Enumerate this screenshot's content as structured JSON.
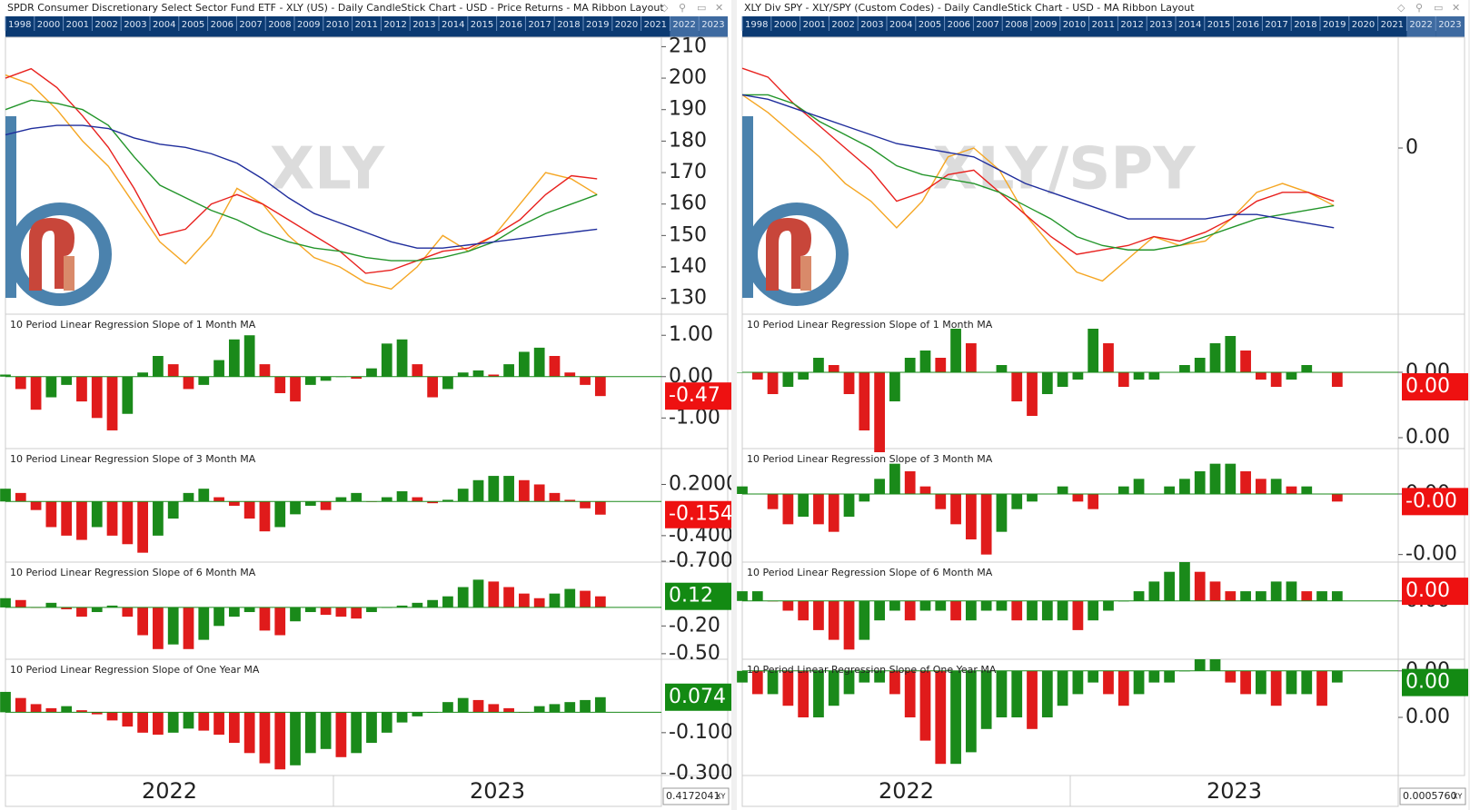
{
  "windows": [
    {
      "title": "SPDR Consumer Discretionary Select Sector Fund ETF - XLY (US) - Daily CandleStick Chart - USD - Price Returns - MA Ribbon Layout",
      "years": [
        "1998",
        "2000",
        "2001",
        "2002",
        "2003",
        "2004",
        "2005",
        "2006",
        "2007",
        "2008",
        "2009",
        "2010",
        "2011",
        "2012",
        "2013",
        "2014",
        "2015",
        "2016",
        "2017",
        "2018",
        "2019",
        "2020",
        "2021",
        "2022",
        "2023"
      ],
      "main": {
        "watermark": "XLY",
        "ylim": [
          125,
          213
        ],
        "yticks": [
          130,
          140,
          150,
          160,
          170,
          180,
          190,
          200,
          210
        ],
        "xlim": [
          0,
          25.5
        ],
        "series": [
          {
            "color": "#f5a623",
            "values": [
              201,
              198,
              190,
              180,
              172,
              160,
              148,
              141,
              150,
              165,
              160,
              150,
              143,
              140,
              135,
              133,
              140,
              150,
              145,
              150,
              160,
              170,
              168,
              163
            ]
          },
          {
            "color": "#e8211e",
            "values": [
              200,
              203,
              197,
              188,
              178,
              165,
              150,
              152,
              160,
              163,
              160,
              155,
              150,
              145,
              138,
              139,
              142,
              145,
              146,
              150,
              155,
              163,
              169,
              168
            ]
          },
          {
            "color": "#23952a",
            "values": [
              190,
              193,
              192,
              190,
              185,
              175,
              166,
              162,
              158,
              155,
              151,
              148,
              146,
              145,
              143,
              142,
              142,
              143,
              145,
              148,
              153,
              157,
              160,
              163
            ]
          },
          {
            "color": "#1f2d9c",
            "values": [
              182,
              184,
              185,
              185,
              184,
              181,
              179,
              178,
              176,
              173,
              168,
              162,
              157,
              154,
              151,
              148,
              146,
              146,
              147,
              148,
              149,
              150,
              151,
              152
            ]
          }
        ]
      },
      "panes": [
        {
          "title": "10 Period Linear Regression Slope of 1 Month MA",
          "ylim": [
            -1.74,
            1.51
          ],
          "xlim": [
            0,
            43
          ],
          "yticks": [
            {
              "value": 1,
              "label": "1.00"
            },
            {
              "value": 0,
              "label": "0.00"
            },
            {
              "value": -1,
              "label": "-1.00"
            }
          ],
          "values": [
            0.05,
            -0.3,
            -0.8,
            -0.5,
            -0.2,
            -0.6,
            -1.0,
            -1.3,
            -0.9,
            0.1,
            0.5,
            0.3,
            -0.3,
            -0.2,
            0.4,
            0.9,
            1.0,
            0.3,
            -0.4,
            -0.6,
            -0.2,
            -0.1,
            0.0,
            -0.05,
            0.2,
            0.8,
            0.9,
            0.3,
            -0.5,
            -0.3,
            0.1,
            0.15,
            0.05,
            0.3,
            0.6,
            0.7,
            0.5,
            0.1,
            -0.2,
            -0.47
          ],
          "box": {
            "value": -0.47,
            "label": "-0.47",
            "color": "#ee1111"
          }
        },
        {
          "title": "10 Period Linear Regression Slope of 3 Month MA",
          "ylim": [
            -0.71,
            0.62
          ],
          "xlim": [
            0,
            43
          ],
          "yticks": [
            {
              "value": 0.2,
              "label": "0.2000"
            },
            {
              "value": -0.4,
              "label": "-0.4000"
            },
            {
              "value": -0.7,
              "label": "-0.7000"
            }
          ],
          "values": [
            0.15,
            0.1,
            -0.1,
            -0.3,
            -0.4,
            -0.45,
            -0.3,
            -0.4,
            -0.5,
            -0.6,
            -0.4,
            -0.2,
            0.1,
            0.15,
            0.05,
            -0.05,
            -0.2,
            -0.35,
            -0.3,
            -0.15,
            -0.05,
            -0.1,
            0.05,
            0.1,
            0.0,
            0.05,
            0.12,
            0.05,
            -0.02,
            0.02,
            0.15,
            0.25,
            0.3,
            0.3,
            0.25,
            0.2,
            0.1,
            0.02,
            -0.08,
            -0.154
          ],
          "box": {
            "value": -0.154,
            "label": "-0.1540",
            "color": "#ee1111"
          }
        },
        {
          "title": "10 Period Linear Regression Slope of 6 Month MA",
          "ylim": [
            -0.56,
            0.49
          ],
          "xlim": [
            0,
            43
          ],
          "yticks": [
            {
              "value": -0.2,
              "label": "-0.20"
            },
            {
              "value": -0.5,
              "label": "-0.50"
            }
          ],
          "values": [
            0.1,
            0.08,
            0.0,
            0.05,
            -0.02,
            -0.1,
            -0.05,
            0.02,
            -0.1,
            -0.3,
            -0.45,
            -0.4,
            -0.45,
            -0.35,
            -0.2,
            -0.1,
            -0.05,
            -0.25,
            -0.3,
            -0.15,
            -0.05,
            -0.08,
            -0.1,
            -0.12,
            -0.05,
            0.0,
            0.02,
            0.05,
            0.08,
            0.12,
            0.22,
            0.3,
            0.28,
            0.22,
            0.15,
            0.1,
            0.15,
            0.2,
            0.18,
            0.12
          ],
          "box": {
            "value": 0.12,
            "label": "0.12",
            "color": "#138a13"
          }
        },
        {
          "title": "10 Period Linear Regression Slope of One Year MA",
          "ylim": [
            -0.31,
            0.26
          ],
          "xlim": [
            0,
            43
          ],
          "yticks": [
            {
              "value": -0.1,
              "label": "-0.100"
            },
            {
              "value": -0.3,
              "label": "-0.300"
            }
          ],
          "values": [
            0.1,
            0.07,
            0.04,
            0.02,
            0.03,
            0.01,
            -0.01,
            -0.04,
            -0.07,
            -0.1,
            -0.11,
            -0.1,
            -0.08,
            -0.09,
            -0.11,
            -0.15,
            -0.2,
            -0.25,
            -0.28,
            -0.26,
            -0.2,
            -0.18,
            -0.22,
            -0.2,
            -0.15,
            -0.1,
            -0.05,
            -0.02,
            0.0,
            0.05,
            0.07,
            0.06,
            0.04,
            0.02,
            0.0,
            0.03,
            0.04,
            0.05,
            0.06,
            0.074
          ],
          "box": {
            "value": 0.074,
            "label": "0.074",
            "color": "#138a13"
          }
        }
      ],
      "x_labels": [
        "2022",
        "2023"
      ],
      "readout": "0.4172041",
      "readout_tag": "XY"
    },
    {
      "title": "XLY Div SPY -  XLY/SPY (Custom Codes) - Daily CandleStick Chart - USD - MA Ribbon Layout",
      "years": [
        "1998",
        "2000",
        "2001",
        "2002",
        "2003",
        "2004",
        "2005",
        "2006",
        "2007",
        "2008",
        "2009",
        "2010",
        "2011",
        "2012",
        "2013",
        "2014",
        "2015",
        "2016",
        "2017",
        "2018",
        "2019",
        "2020",
        "2021",
        "2022",
        "2023"
      ],
      "main": {
        "watermark": "XLY/SPY",
        "ylim": [
          -0.375,
          0.25
        ],
        "yticks": [
          0
        ],
        "xlim": [
          0,
          25.5
        ],
        "series": [
          {
            "color": "#f5a623",
            "values": [
              0.12,
              0.08,
              0.03,
              -0.02,
              -0.08,
              -0.12,
              -0.18,
              -0.12,
              -0.02,
              0.0,
              -0.05,
              -0.15,
              -0.22,
              -0.28,
              -0.3,
              -0.25,
              -0.2,
              -0.22,
              -0.21,
              -0.16,
              -0.1,
              -0.08,
              -0.1,
              -0.13
            ]
          },
          {
            "color": "#e8211e",
            "values": [
              0.18,
              0.16,
              0.1,
              0.05,
              0.0,
              -0.05,
              -0.12,
              -0.1,
              -0.06,
              -0.05,
              -0.1,
              -0.15,
              -0.2,
              -0.24,
              -0.23,
              -0.22,
              -0.2,
              -0.21,
              -0.19,
              -0.16,
              -0.12,
              -0.1,
              -0.1,
              -0.12
            ]
          },
          {
            "color": "#23952a",
            "values": [
              0.12,
              0.12,
              0.1,
              0.06,
              0.03,
              0.0,
              -0.04,
              -0.06,
              -0.07,
              -0.08,
              -0.1,
              -0.13,
              -0.16,
              -0.2,
              -0.22,
              -0.23,
              -0.23,
              -0.22,
              -0.2,
              -0.18,
              -0.16,
              -0.15,
              -0.14,
              -0.13
            ]
          },
          {
            "color": "#1f2d9c",
            "values": [
              0.12,
              0.11,
              0.09,
              0.07,
              0.05,
              0.03,
              0.01,
              0.0,
              -0.01,
              -0.02,
              -0.05,
              -0.08,
              -0.1,
              -0.12,
              -0.14,
              -0.16,
              -0.16,
              -0.16,
              -0.16,
              -0.15,
              -0.15,
              -0.16,
              -0.17,
              -0.18
            ]
          }
        ]
      },
      "panes": [
        {
          "title": "10 Period Linear Regression Slope of 1 Month MA",
          "ylim": [
            -0.00105,
            0.0008
          ],
          "xlim": [
            0,
            43
          ],
          "yticks": [
            {
              "value": 0,
              "label": "0.00"
            },
            {
              "value": -0.0009,
              "label": "0.00"
            }
          ],
          "values": [
            0,
            -0.0001,
            -0.0003,
            -0.0002,
            -0.0001,
            0.0002,
            0.0001,
            -0.0003,
            -0.0008,
            -0.0011,
            -0.0004,
            0.0002,
            0.0003,
            0.0002,
            0.0006,
            0.0004,
            0,
            0.0001,
            -0.0004,
            -0.0006,
            -0.0003,
            -0.0002,
            -0.0001,
            0.0006,
            0.0004,
            -0.0002,
            -0.0001,
            -0.0001,
            0,
            0.0001,
            0.0002,
            0.0004,
            0.0005,
            0.0003,
            -0.0001,
            -0.0002,
            -0.0001,
            0.0001,
            0,
            -0.0002
          ],
          "box": {
            "value": -0.0002,
            "label": "0.00",
            "color": "#ee1111"
          }
        },
        {
          "title": "10 Period Linear Regression Slope of 3 Month MA",
          "ylim": [
            -0.0009,
            0.0006
          ],
          "xlim": [
            0,
            43
          ],
          "yticks": [
            {
              "value": 0,
              "label": "0.00"
            },
            {
              "value": -0.0008,
              "label": "-0.00"
            }
          ],
          "values": [
            0.0001,
            0,
            -0.0002,
            -0.0004,
            -0.0003,
            -0.0004,
            -0.0005,
            -0.0003,
            -0.0001,
            0.0002,
            0.0004,
            0.0003,
            0.0001,
            -0.0002,
            -0.0004,
            -0.0006,
            -0.0008,
            -0.0005,
            -0.0002,
            -0.0001,
            0,
            0.0001,
            -0.0001,
            -0.0002,
            0,
            0.0001,
            0.0002,
            0,
            0.0001,
            0.0002,
            0.0003,
            0.0004,
            0.0004,
            0.0003,
            0.0002,
            0.0002,
            0.0001,
            0.0001,
            0,
            -0.0001
          ],
          "box": {
            "value": -0.0001,
            "label": "-0.00",
            "color": "#ee1111"
          }
        },
        {
          "title": "10 Period Linear Regression Slope of 6 Month MA",
          "ylim": [
            -0.0006,
            0.0004
          ],
          "xlim": [
            0,
            43
          ],
          "yticks": [
            {
              "value": 0,
              "label": "0.00"
            }
          ],
          "values": [
            0.0001,
            0.0001,
            0,
            -0.0001,
            -0.0002,
            -0.0003,
            -0.0004,
            -0.0005,
            -0.0004,
            -0.0002,
            -0.0001,
            -0.0002,
            -0.0001,
            -0.0001,
            -0.0002,
            -0.0002,
            -0.0001,
            -0.0001,
            -0.0002,
            -0.0002,
            -0.0002,
            -0.0002,
            -0.0003,
            -0.0002,
            -0.0001,
            0,
            0.0001,
            0.0002,
            0.0003,
            0.0004,
            0.0003,
            0.0002,
            0.0001,
            0.0001,
            0.0001,
            0.0002,
            0.0002,
            0.0001,
            0.0001,
            0.0001
          ],
          "box": {
            "value": 0.0001,
            "label": "0.00",
            "color": "#ee1111"
          }
        },
        {
          "title": "10 Period Linear Regression Slope of One Year MA",
          "ylim": [
            -0.0009,
            0.0001
          ],
          "xlim": [
            0,
            43
          ],
          "yticks": [
            {
              "value": 0,
              "label": "0.00"
            },
            {
              "value": -0.0004,
              "label": "0.00"
            }
          ],
          "values": [
            -0.0001,
            -0.0002,
            -0.0002,
            -0.0003,
            -0.0004,
            -0.0004,
            -0.0003,
            -0.0002,
            -0.0001,
            -0.0001,
            -0.0002,
            -0.0004,
            -0.0006,
            -0.0008,
            -0.0008,
            -0.0007,
            -0.0005,
            -0.0004,
            -0.0004,
            -0.0005,
            -0.0004,
            -0.0003,
            -0.0002,
            -0.0001,
            -0.0002,
            -0.0003,
            -0.0002,
            -0.0001,
            -0.0001,
            0,
            0.0001,
            0.0001,
            -0.0001,
            -0.0002,
            -0.0002,
            -0.0003,
            -0.0002,
            -0.0002,
            -0.0003,
            -0.0001
          ],
          "box": {
            "value": -0.0001,
            "label": "0.00",
            "color": "#138a13"
          }
        }
      ],
      "x_labels": [
        "2022",
        "2023"
      ],
      "readout": "0.0005760",
      "readout_tag": "XY"
    }
  ]
}
